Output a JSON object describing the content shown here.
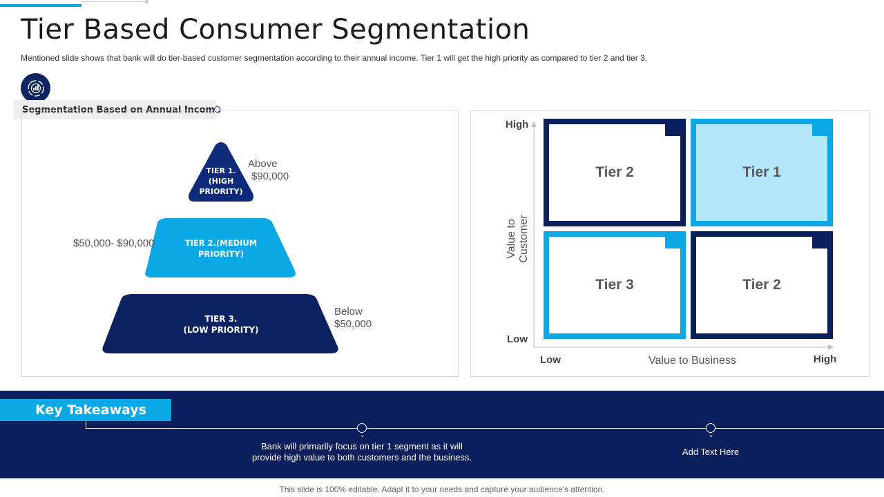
{
  "header": {
    "title": "Tier Based Consumer Segmentation",
    "subtitle": "Mentioned slide shows that bank will do tier-based customer segmentation according to their annual income. Tier 1 will get the high priority as compared to tier 2 and tier 3."
  },
  "segmentation": {
    "icon": "target-chart-icon",
    "tag_label": "Segmentation Based on Annual Income",
    "pyramid": {
      "tier1": {
        "line1": "TIER 1.",
        "line2": "(HIGH",
        "line3": "PRIORITY)",
        "range_line1": "Above",
        "range_line2": "$90,000",
        "color": "#0d2b7a"
      },
      "tier2": {
        "line1": "TIER 2.(MEDIUM",
        "line2": "PRIORITY)",
        "range": "$50,000- $90,000",
        "color": "#0aa9e6"
      },
      "tier3": {
        "line1": "TIER 3.",
        "line2": "(LOW PRIORITY)",
        "range_line1": "Below",
        "range_line2": "$50,000",
        "color": "#0b2160"
      }
    }
  },
  "matrix": {
    "y_axis_label": "Value to Customer",
    "x_axis_label": "Value to Business",
    "y_high": "High",
    "y_low": "Low",
    "x_low": "Low",
    "x_high": "High",
    "tiles": [
      {
        "label": "Tier 2",
        "border_color": "#0b1f5c",
        "fill": "#ffffff"
      },
      {
        "label": "Tier 1",
        "border_color": "#0aa9e6",
        "fill": "#b5e7fa"
      },
      {
        "label": "Tier 3",
        "border_color": "#0aa9e6",
        "fill": "#ffffff"
      },
      {
        "label": "Tier 2",
        "border_color": "#0b1f5c",
        "fill": "#ffffff"
      }
    ]
  },
  "takeaways": {
    "heading": "Key Takeaways",
    "items": [
      {
        "text_line1": "Bank will primarily focus on tier 1 segment as it will",
        "text_line2": "provide  high value to both customers and the business."
      },
      {
        "text_line1": "Add Text Here",
        "text_line2": ""
      }
    ]
  },
  "footer": {
    "text": "This slide is 100% editable. Adapt it to your needs and capture your audience's attention."
  },
  "colors": {
    "navy": "#0b1f5c",
    "accent": "#0aa9e6",
    "light_blue": "#b5e7fa"
  }
}
